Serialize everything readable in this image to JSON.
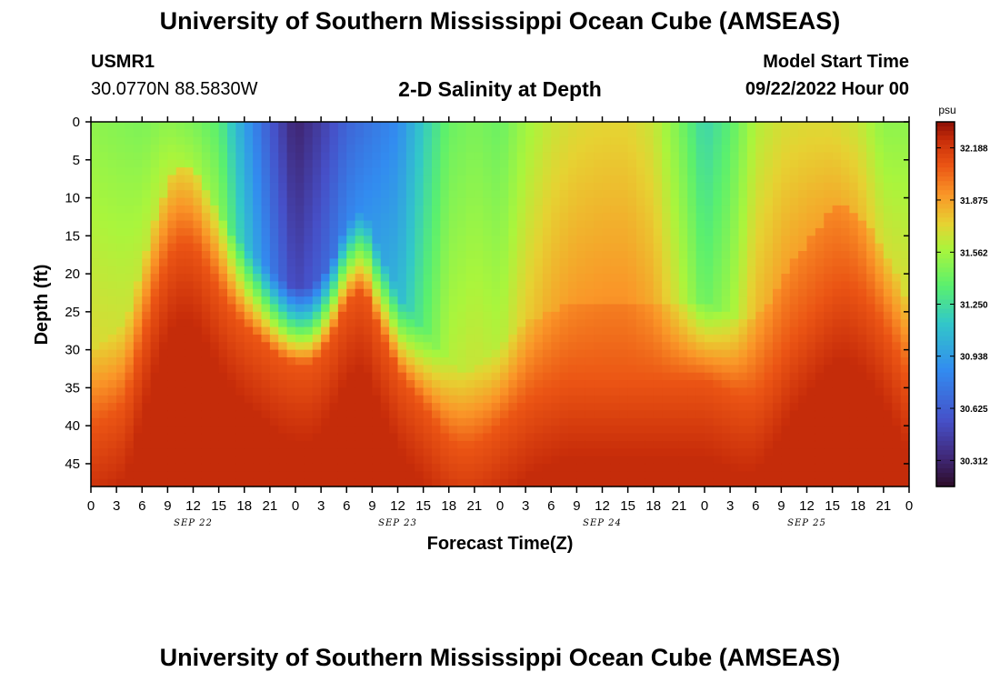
{
  "header": {
    "title": "University of Southern Mississippi Ocean Cube (AMSEAS)",
    "station_id": "USMR1",
    "station_coords": "30.0770N  88.5830W",
    "plot_title": "2-D Salinity at Depth",
    "model_start_label": "Model Start Time",
    "model_start_value": "09/22/2022 Hour 00"
  },
  "footer": {
    "title": "University of Southern Mississippi Ocean Cube (AMSEAS)"
  },
  "chart_data": {
    "type": "heatmap",
    "title": "2-D Salinity at Depth",
    "xlabel": "Forecast Time(Z)",
    "ylabel": "Depth (ft)",
    "xlim_hours": [
      0,
      96
    ],
    "ylim_ft": [
      0,
      48
    ],
    "x_tick_labels": [
      "0",
      "3",
      "6",
      "9",
      "12",
      "15",
      "18",
      "21",
      "0",
      "3",
      "6",
      "9",
      "12",
      "15",
      "18",
      "21",
      "0",
      "3",
      "6",
      "9",
      "12",
      "15",
      "18",
      "21",
      "0",
      "3",
      "6",
      "9",
      "12",
      "15",
      "18",
      "21",
      "0"
    ],
    "date_labels": [
      {
        "label": "SEP 22",
        "hour": 12
      },
      {
        "label": "SEP 23",
        "hour": 36
      },
      {
        "label": "SEP 24",
        "hour": 60
      },
      {
        "label": "SEP 25",
        "hour": 84
      }
    ],
    "y_ticks": [
      0,
      5,
      10,
      15,
      20,
      25,
      30,
      35,
      40,
      45
    ],
    "colorbar": {
      "unit": "psu",
      "min": 30.156,
      "max": 32.344,
      "tick_labels": [
        "32.188",
        "31.875",
        "31.562",
        "31.250",
        "30.938",
        "30.625",
        "30.312"
      ],
      "tick_values": [
        32.188,
        31.875,
        31.562,
        31.25,
        30.938,
        30.625,
        30.312
      ]
    },
    "salinity_levels_psu": {
      "shallow_range": [
        30.2,
        31.7
      ],
      "deep_range": [
        32.0,
        32.3
      ]
    },
    "surface_salinity_psu": {
      "hours": [
        0,
        6,
        9,
        12,
        15,
        18,
        21,
        24,
        27,
        30,
        33,
        36,
        39,
        42,
        45,
        48,
        51,
        54,
        57,
        60,
        63,
        66,
        69,
        72,
        75,
        78,
        81,
        84,
        87,
        90,
        93,
        96
      ],
      "values": [
        31.5,
        31.45,
        31.5,
        31.45,
        31.35,
        30.95,
        30.6,
        30.3,
        30.45,
        30.65,
        30.75,
        30.85,
        31.15,
        31.4,
        31.45,
        31.4,
        31.55,
        31.65,
        31.7,
        31.72,
        31.72,
        31.65,
        31.45,
        31.2,
        31.35,
        31.6,
        31.68,
        31.7,
        31.7,
        31.65,
        31.5,
        31.5
      ]
    },
    "high_salinity_layer_top_ft": {
      "hours": [
        0,
        2,
        4,
        6,
        8,
        10,
        12,
        14,
        16,
        18,
        20,
        22,
        24,
        26,
        28,
        30,
        32,
        33,
        34,
        35,
        36,
        38,
        40,
        42,
        44,
        46,
        48,
        50,
        52,
        54,
        56,
        58,
        60,
        62,
        64,
        66,
        68,
        70,
        72,
        74,
        76,
        78,
        80,
        82,
        84,
        86,
        88,
        90,
        92,
        94,
        96
      ],
      "depth_ft": [
        36,
        35,
        33,
        25,
        17,
        12,
        12,
        16,
        20,
        23,
        25,
        27,
        28,
        28,
        25,
        20,
        18,
        21,
        24,
        26,
        29,
        32,
        35,
        38,
        39,
        38,
        36,
        34,
        32,
        31,
        30,
        30,
        30,
        30,
        30,
        30,
        30,
        30,
        30,
        31,
        32,
        32,
        29,
        25,
        22,
        19,
        17,
        18,
        21,
        25,
        30
      ]
    }
  }
}
